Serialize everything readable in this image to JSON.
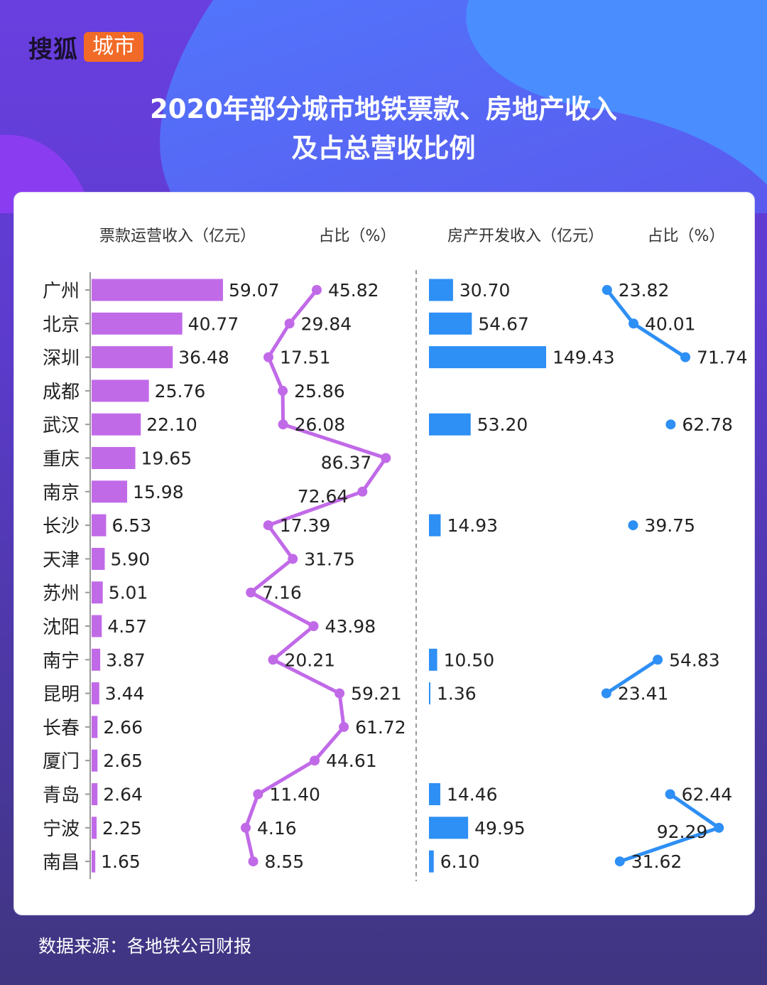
{
  "logo": {
    "text": "搜狐",
    "badge": "城市"
  },
  "title_line1": "2020年部分城市地铁票款、房地产收入",
  "title_line2": "及占总营收比例",
  "source": "数据来源：各地铁公司财报",
  "colors": {
    "purple": "#c16ae8",
    "blue": "#2e8ff4",
    "axis": "#9a9a9a",
    "text": "#222222"
  },
  "chart_data": {
    "type": "bar",
    "headers": [
      "票款运营收入（亿元）",
      "占比（%）",
      "房产开发收入（亿元）",
      "占比（%）"
    ],
    "categories": [
      "广州",
      "北京",
      "深圳",
      "成都",
      "武汉",
      "重庆",
      "南京",
      "长沙",
      "天津",
      "苏州",
      "沈阳",
      "南宁",
      "昆明",
      "长春",
      "厦门",
      "青岛",
      "宁波",
      "南昌"
    ],
    "series": [
      {
        "name": "票款运营收入（亿元）",
        "type": "bar",
        "values": [
          59.07,
          40.77,
          36.48,
          25.76,
          22.1,
          19.65,
          15.98,
          6.53,
          5.9,
          5.01,
          4.57,
          3.87,
          3.44,
          2.66,
          2.65,
          2.64,
          2.25,
          1.65
        ],
        "labels": [
          "59.07",
          "40.77",
          "36.48",
          "25.76",
          "22.10",
          "19.65",
          "15.98",
          "6.53",
          "5.90",
          "5.01",
          "4.57",
          "3.87",
          "3.44",
          "2.66",
          "2.65",
          "2.64",
          "2.25",
          "1.65"
        ]
      },
      {
        "name": "占比（%）",
        "type": "line",
        "values": [
          45.82,
          29.84,
          17.51,
          25.86,
          26.08,
          86.37,
          72.64,
          17.39,
          31.75,
          7.16,
          43.98,
          20.21,
          59.21,
          61.72,
          44.61,
          11.4,
          4.16,
          8.55
        ],
        "labels": [
          "45.82",
          "29.84",
          "17.51",
          "25.86",
          "26.08",
          "86.37",
          "72.64",
          "17.39",
          "31.75",
          "7.16",
          "43.98",
          "20.21",
          "59.21",
          "61.72",
          "44.61",
          "11.40",
          "4.16",
          "8.55"
        ]
      },
      {
        "name": "房产开发收入（亿元）",
        "type": "bar",
        "values": [
          30.7,
          54.67,
          149.43,
          null,
          53.2,
          null,
          null,
          14.93,
          null,
          null,
          null,
          10.5,
          1.36,
          null,
          null,
          14.46,
          49.95,
          6.1
        ],
        "labels": [
          "30.70",
          "54.67",
          "149.43",
          null,
          "53.20",
          null,
          null,
          "14.93",
          null,
          null,
          null,
          "10.50",
          "1.36",
          null,
          null,
          "14.46",
          "49.95",
          "6.10"
        ]
      },
      {
        "name": "占比（%）",
        "type": "line",
        "values": [
          23.82,
          40.01,
          71.74,
          null,
          62.78,
          null,
          null,
          39.75,
          null,
          null,
          null,
          54.83,
          23.41,
          null,
          null,
          62.44,
          92.29,
          31.62
        ],
        "labels": [
          "23.82",
          "40.01",
          "71.74",
          null,
          "62.78",
          null,
          null,
          "39.75",
          null,
          null,
          null,
          "54.83",
          "23.41",
          null,
          null,
          "62.44",
          "92.29",
          "31.62"
        ]
      }
    ]
  }
}
